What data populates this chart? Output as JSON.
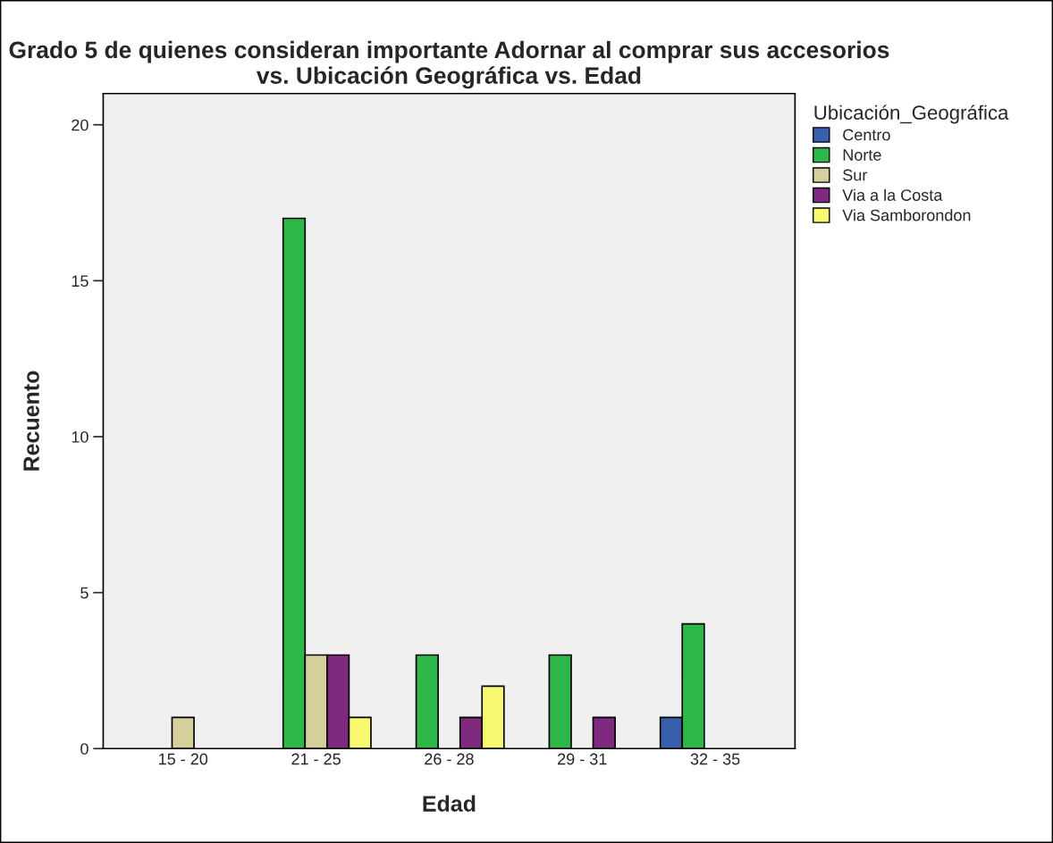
{
  "chart_data": {
    "type": "bar",
    "title": "Grado 5 de quienes consideran importante Adornar al comprar sus accesorios\nvs. Ubicación Geográfica vs. Edad",
    "xlabel": "Edad",
    "ylabel": "Recuento",
    "legend_title": "Ubicación_Geográfica",
    "categories": [
      "15 - 20",
      "21 - 25",
      "26 - 28",
      "29 - 31",
      "32 - 35"
    ],
    "series": [
      {
        "name": "Centro",
        "color": "#3a5fad",
        "values": [
          null,
          null,
          null,
          null,
          1
        ]
      },
      {
        "name": "Norte",
        "color": "#2eb84a",
        "values": [
          null,
          17,
          3,
          3,
          4
        ]
      },
      {
        "name": "Sur",
        "color": "#d5cf9b",
        "values": [
          1,
          3,
          null,
          null,
          null
        ]
      },
      {
        "name": "Via a la Costa",
        "color": "#7f2a7f",
        "values": [
          null,
          3,
          1,
          1,
          null
        ]
      },
      {
        "name": "Via Samborondon",
        "color": "#f9f871",
        "values": [
          null,
          1,
          2,
          null,
          null
        ]
      }
    ],
    "ylim": [
      0,
      21
    ],
    "yticks": [
      0,
      5,
      10,
      15,
      20
    ],
    "grid": false,
    "legend": "right"
  }
}
